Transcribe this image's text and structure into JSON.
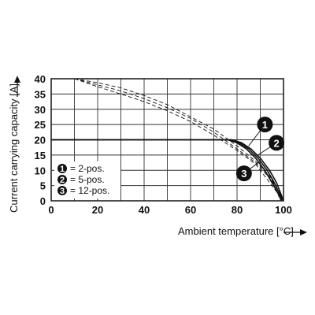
{
  "chart_data": {
    "type": "line",
    "xlabel": "Ambient temperature [°C]",
    "ylabel": "Current carrying capacity [A]",
    "xlim": [
      0,
      100
    ],
    "ylim": [
      0,
      40
    ],
    "xticks": [
      0,
      20,
      40,
      60,
      80,
      100
    ],
    "yticks": [
      0,
      5,
      10,
      15,
      20,
      25,
      30,
      35,
      40
    ],
    "x_grid_step": 10,
    "grid": true,
    "legend_position": "bottom-left",
    "legend": [
      {
        "marker": "1",
        "label": "= 2-pos."
      },
      {
        "marker": "2",
        "label": "= 5-pos."
      },
      {
        "marker": "3",
        "label": "= 12-pos."
      }
    ],
    "series": [
      {
        "marker": "1",
        "style": "solid",
        "points": [
          [
            0,
            20
          ],
          [
            78,
            20
          ],
          [
            82,
            19
          ],
          [
            86,
            17
          ],
          [
            90,
            14
          ],
          [
            94,
            10
          ],
          [
            97,
            6
          ],
          [
            99,
            2
          ],
          [
            100,
            0
          ]
        ]
      },
      {
        "marker": "2",
        "style": "solid",
        "points": [
          [
            0,
            20
          ],
          [
            77,
            20
          ],
          [
            81,
            19
          ],
          [
            85,
            17
          ],
          [
            89,
            14
          ],
          [
            93,
            10
          ],
          [
            96,
            6
          ],
          [
            98.5,
            2
          ],
          [
            99.5,
            0
          ]
        ]
      },
      {
        "marker": "3",
        "style": "solid",
        "points": [
          [
            0,
            20
          ],
          [
            76,
            20
          ],
          [
            80,
            19
          ],
          [
            84,
            17
          ],
          [
            88,
            14
          ],
          [
            92,
            10
          ],
          [
            95,
            6
          ],
          [
            98,
            2
          ],
          [
            99,
            0
          ]
        ]
      },
      {
        "marker": "1",
        "style": "dashed",
        "points": [
          [
            10,
            40
          ],
          [
            20,
            38.7
          ],
          [
            30,
            37
          ],
          [
            40,
            34.5
          ],
          [
            50,
            31.5
          ],
          [
            60,
            27.5
          ],
          [
            70,
            23.5
          ],
          [
            80,
            18
          ],
          [
            88,
            13
          ],
          [
            94,
            8
          ],
          [
            98,
            3
          ],
          [
            100,
            0
          ]
        ]
      },
      {
        "marker": "2",
        "style": "dashed",
        "points": [
          [
            10,
            40
          ],
          [
            20,
            38
          ],
          [
            30,
            36
          ],
          [
            40,
            33.5
          ],
          [
            50,
            30.5
          ],
          [
            60,
            27
          ],
          [
            70,
            22.5
          ],
          [
            80,
            17
          ],
          [
            88,
            12.5
          ],
          [
            94,
            7.5
          ],
          [
            98,
            3
          ],
          [
            100,
            0
          ]
        ]
      },
      {
        "marker": "3",
        "style": "dashed",
        "points": [
          [
            10,
            40
          ],
          [
            20,
            37.4
          ],
          [
            30,
            35
          ],
          [
            40,
            32.5
          ],
          [
            50,
            29.5
          ],
          [
            60,
            26
          ],
          [
            70,
            21.5
          ],
          [
            80,
            16.5
          ],
          [
            88,
            12
          ],
          [
            93,
            7
          ],
          [
            97,
            3
          ],
          [
            99,
            0
          ]
        ]
      }
    ],
    "callouts": [
      {
        "marker": "1",
        "x": 92,
        "y": 25,
        "line_to": [
          85,
          18
        ]
      },
      {
        "marker": "2",
        "x": 97,
        "y": 19,
        "line_to": [
          89,
          15
        ]
      },
      {
        "marker": "3",
        "x": 83,
        "y": 9,
        "line_to": [
          90,
          13
        ]
      }
    ]
  }
}
